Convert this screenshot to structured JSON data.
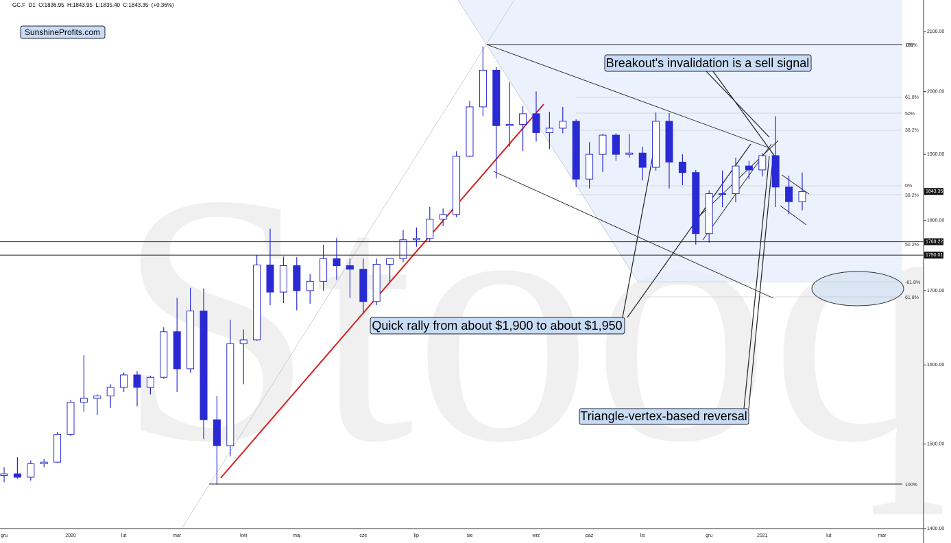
{
  "chart_data": {
    "type": "candlestick",
    "title": "GC.F  D1  O:1836.95  H:1843.95  L:1835.40  C:1843.35  (+0.36%)",
    "brand": "SunshineProfits.com",
    "watermark": "Stooq",
    "annotations": [
      "Breakout's invalidation is a sell signal",
      "Quick rally from about $1,900 to about $1,950",
      "Triangle-vertex-based reversal"
    ],
    "fib_labels": [
      "100%",
      "0%",
      "61.8%",
      "50%",
      "38.2%",
      "0%",
      "38.2%",
      "50.2%",
      "-61.8%",
      "61.8%",
      "100%"
    ],
    "log_scale": true,
    "up_color": "#ffffff",
    "down_color": "#2a2ad4",
    "edge_color": "#2a2ad4",
    "ylim": [
      1400,
      2155
    ],
    "yticks": [
      {
        "value": 1400,
        "label": "1400.00"
      },
      {
        "value": 1500,
        "label": "1500.00"
      },
      {
        "value": 1600,
        "label": "1600.00"
      },
      {
        "value": 1700,
        "label": "1700.00"
      },
      {
        "value": 1800,
        "label": "1800.00"
      },
      {
        "value": 1900,
        "label": "1900.00"
      },
      {
        "value": 2000,
        "label": "2000.00"
      },
      {
        "value": 2100,
        "label": "2100.00"
      }
    ],
    "levels": [
      1843.35,
      1769.22,
      1750.01
    ],
    "categories": [
      "gru",
      null,
      null,
      null,
      null,
      "2020",
      null,
      null,
      null,
      "lut",
      null,
      null,
      null,
      "mar",
      null,
      null,
      null,
      null,
      "kwi",
      null,
      null,
      null,
      "maj",
      null,
      null,
      null,
      null,
      "cze",
      null,
      null,
      null,
      "lip",
      null,
      null,
      null,
      "sie",
      null,
      null,
      null,
      null,
      "wrz",
      null,
      null,
      null,
      "paź",
      null,
      null,
      null,
      "lis",
      null,
      null,
      null,
      null,
      "gru",
      null,
      null,
      null,
      "2021",
      null,
      null,
      null,
      null,
      "lut",
      null,
      null,
      null,
      "mar"
    ],
    "open": [
      1462,
      1464,
      1460,
      1476,
      1478,
      1512,
      1552,
      1557,
      1560,
      1571,
      1587,
      1571,
      1584,
      1644,
      1595,
      1672,
      1530,
      1498,
      1628,
      1633,
      1736,
      1698,
      1735,
      1700,
      1713,
      1745,
      1735,
      1730,
      1685,
      1737,
      1745,
      1772,
      1774,
      1802,
      1809,
      1897,
      1975,
      2035,
      1945,
      1947,
      1964,
      1934,
      1941,
      1952,
      1862,
      1900,
      1930,
      1900,
      1902,
      1880,
      1952,
      1888,
      1872,
      1781,
      1840,
      1840,
      1882,
      1876,
      1898,
      1850,
      1828,
      null,
      null,
      null,
      null,
      null,
      null
    ],
    "high": [
      1472,
      1484,
      1480,
      1482,
      1515,
      1555,
      1613,
      1562,
      1575,
      1590,
      1592,
      1586,
      1650,
      1690,
      1704,
      1703,
      1560,
      1660,
      1647,
      1750,
      1788,
      1748,
      1747,
      1723,
      1765,
      1775,
      1745,
      1745,
      1745,
      1745,
      1786,
      1790,
      1820,
      1818,
      1905,
      1985,
      2075,
      2040,
      2015,
      1976,
      2000,
      1967,
      1975,
      1955,
      1919,
      1932,
      1933,
      1932,
      1912,
      1966,
      1965,
      1900,
      1876,
      1845,
      1875,
      1895,
      1890,
      1902,
      1960,
      1867,
      1872,
      null,
      null,
      null,
      null,
      null,
      null
    ],
    "low": [
      1454,
      1458,
      1456,
      1472,
      1477,
      1510,
      1540,
      1536,
      1545,
      1565,
      1547,
      1562,
      1582,
      1565,
      1590,
      1506,
      1451,
      1485,
      1575,
      1632,
      1680,
      1683,
      1673,
      1682,
      1700,
      1715,
      1690,
      1670,
      1680,
      1712,
      1740,
      1762,
      1770,
      1792,
      1805,
      1896,
      1960,
      1863,
      1912,
      1905,
      1920,
      1908,
      1933,
      1850,
      1848,
      1873,
      1890,
      1895,
      1860,
      1875,
      1848,
      1853,
      1765,
      1768,
      1820,
      1827,
      1862,
      1866,
      1820,
      1810,
      1815,
      null,
      null,
      null,
      null,
      null,
      null
    ],
    "close": [
      1464,
      1460,
      1476,
      1478,
      1512,
      1552,
      1557,
      1560,
      1571,
      1587,
      1571,
      1584,
      1644,
      1595,
      1672,
      1530,
      1498,
      1628,
      1633,
      1736,
      1698,
      1735,
      1700,
      1713,
      1745,
      1735,
      1730,
      1685,
      1737,
      1745,
      1772,
      1774,
      1802,
      1809,
      1897,
      1975,
      2035,
      1945,
      1947,
      1964,
      1934,
      1941,
      1952,
      1862,
      1900,
      1930,
      1900,
      1902,
      1880,
      1952,
      1888,
      1872,
      1781,
      1840,
      1840,
      1882,
      1876,
      1898,
      1850,
      1828,
      1843,
      null,
      null,
      null,
      null,
      null,
      null
    ]
  }
}
